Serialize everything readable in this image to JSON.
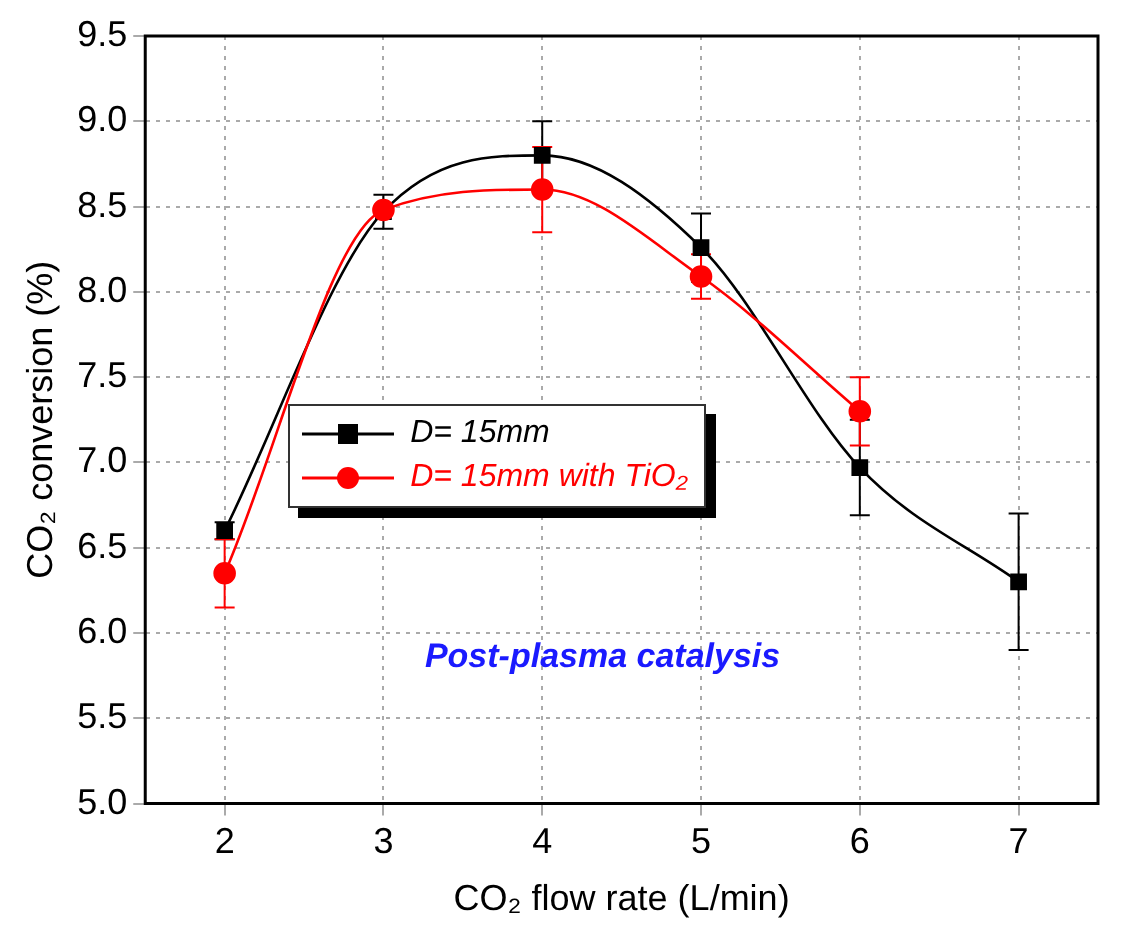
{
  "chart_data": {
    "type": "line",
    "xlabel": "CO₂ flow rate (L/min)",
    "ylabel": "CO₂ conversion (%)",
    "xlim": [
      1.5,
      7.5
    ],
    "xticks": [
      2,
      3,
      4,
      5,
      6,
      7
    ],
    "ylim": [
      5.0,
      9.5
    ],
    "yticks": [
      {
        "value": 5.0,
        "label": "5.0"
      },
      {
        "value": 5.5,
        "label": "5.5"
      },
      {
        "value": 6.0,
        "label": "6.0"
      },
      {
        "value": 6.5,
        "label": "6.5"
      },
      {
        "value": 7.0,
        "label": "7.0"
      },
      {
        "value": 7.5,
        "label": "7.5"
      },
      {
        "value": 8.0,
        "label": "8.0"
      },
      {
        "value": 8.5,
        "label": "8.5"
      },
      {
        "value": 9.0,
        "label": "9.0"
      },
      {
        "value": 9.5,
        "label": "9.5"
      }
    ],
    "x": [
      2,
      3,
      4,
      5,
      6,
      7
    ],
    "series": [
      {
        "name": "D= 15mm",
        "color": "#000000",
        "marker": "square",
        "values": [
          6.6,
          8.47,
          8.8,
          8.26,
          6.97,
          6.3
        ],
        "errors": [
          0.05,
          0.1,
          0.2,
          0.2,
          0.28,
          0.4
        ]
      },
      {
        "name": "D= 15mm with TiO₂",
        "color": "#ff0000",
        "marker": "circle",
        "values": [
          6.35,
          8.48,
          8.6,
          8.09,
          7.3,
          null
        ],
        "errors": [
          0.2,
          null,
          0.25,
          0.13,
          0.2,
          null
        ]
      }
    ],
    "annotations": [
      "Post-plasma catalysis"
    ],
    "grid": true,
    "legend": "left",
    "line_style": "solid"
  }
}
